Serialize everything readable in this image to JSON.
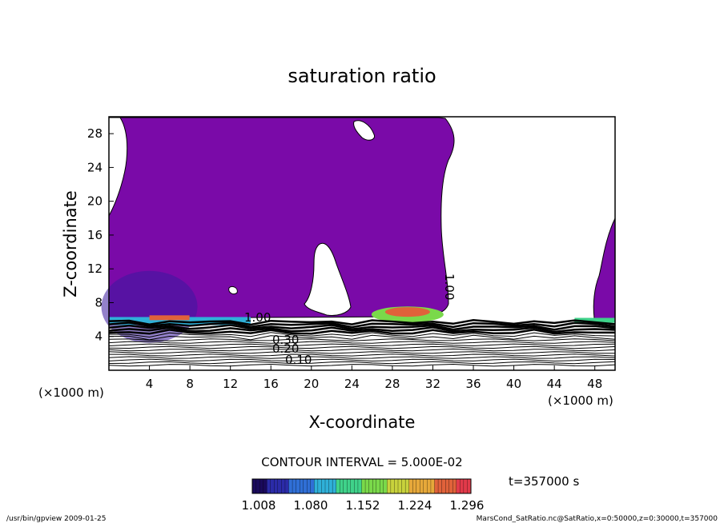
{
  "chart_data": {
    "type": "contour",
    "title": "saturation ratio",
    "xlabel": "X-coordinate",
    "ylabel": "Z-coordinate",
    "x_unit_note": "(×1000 m)",
    "y_unit_note": "(×1000 m)",
    "xlim": [
      0,
      50
    ],
    "ylim": [
      0,
      30
    ],
    "x_ticks": [
      4,
      8,
      12,
      16,
      20,
      24,
      28,
      32,
      36,
      40,
      44,
      48
    ],
    "y_ticks": [
      4,
      8,
      12,
      16,
      20,
      24,
      28
    ],
    "contour_interval_text": "CONTOUR INTERVAL = 5.000E-02",
    "contour_labels": [
      "1.00",
      "0.10",
      "0.20",
      "0.30",
      "1.00"
    ],
    "time_label": "t=357000 s",
    "colorbar": {
      "ticks": [
        "1.008",
        "1.080",
        "1.152",
        "1.224",
        "1.296"
      ],
      "colors": [
        "#1a0a5c",
        "#2b2ba8",
        "#2f6fd6",
        "#2fb0d8",
        "#3fd28a",
        "#7ad94a",
        "#c8d23c",
        "#e6a83a",
        "#e0623a",
        "#e23a4a"
      ]
    },
    "fill_color": "#7a0aa8",
    "footer_left": "/usr/bin/gpview   2009-01-25",
    "footer_right": "MarsCond_SatRatio.nc@SatRatio,x=0:50000,z=0:30000,t=357000"
  }
}
